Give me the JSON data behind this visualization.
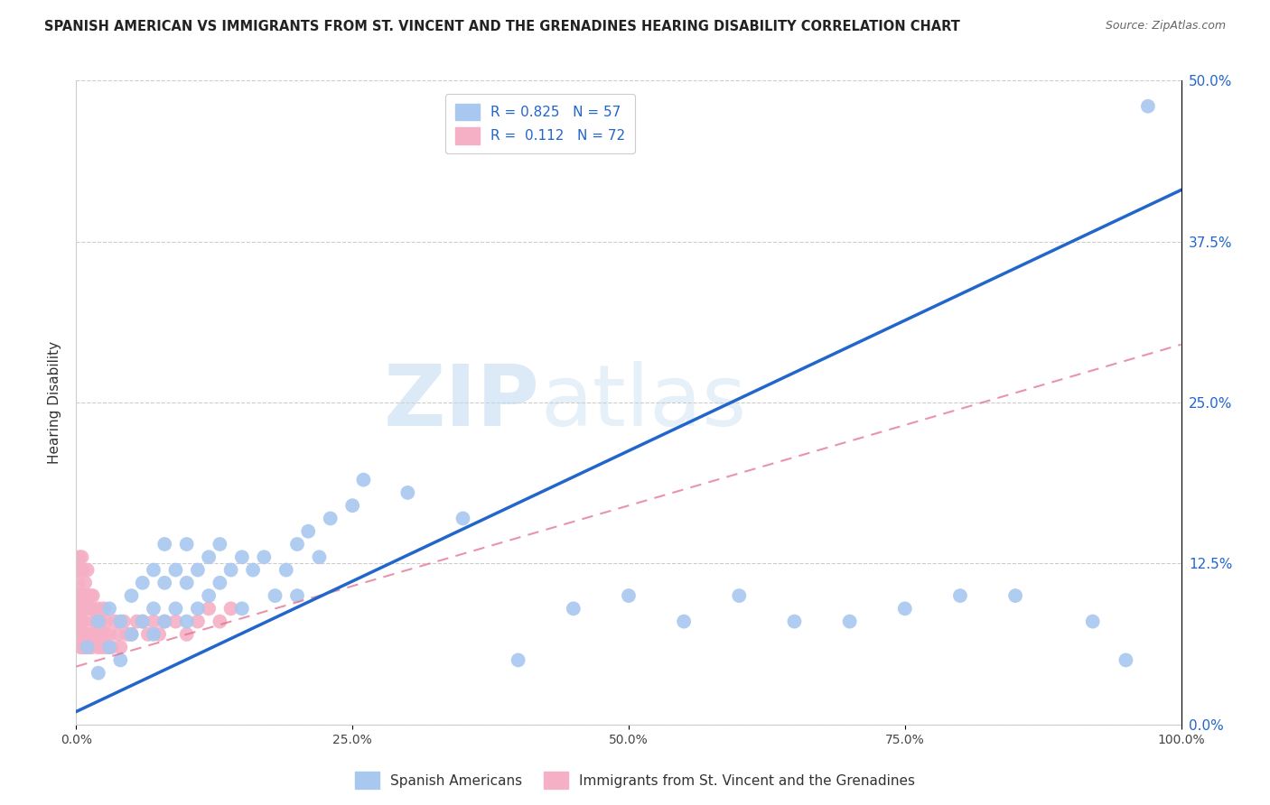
{
  "title": "SPANISH AMERICAN VS IMMIGRANTS FROM ST. VINCENT AND THE GRENADINES HEARING DISABILITY CORRELATION CHART",
  "source": "Source: ZipAtlas.com",
  "ylabel": "Hearing Disability",
  "xlabel": "",
  "R_blue": 0.825,
  "N_blue": 57,
  "R_pink": 0.112,
  "N_pink": 72,
  "blue_color": "#a8c8f0",
  "blue_line_color": "#2266cc",
  "pink_color": "#f5b0c5",
  "pink_line_color": "#e07090",
  "watermark_zip": "ZIP",
  "watermark_atlas": "atlas",
  "xlim": [
    0.0,
    1.0
  ],
  "ylim": [
    0.0,
    0.5
  ],
  "xtick_labels": [
    "0.0%",
    "25.0%",
    "50.0%",
    "75.0%",
    "100.0%"
  ],
  "xtick_vals": [
    0.0,
    0.25,
    0.5,
    0.75,
    1.0
  ],
  "ytick_labels": [
    "0.0%",
    "12.5%",
    "25.0%",
    "37.5%",
    "50.0%"
  ],
  "ytick_vals": [
    0.0,
    0.125,
    0.25,
    0.375,
    0.5
  ],
  "blue_x": [
    0.01,
    0.02,
    0.02,
    0.03,
    0.03,
    0.04,
    0.04,
    0.05,
    0.05,
    0.06,
    0.06,
    0.07,
    0.07,
    0.07,
    0.08,
    0.08,
    0.08,
    0.09,
    0.09,
    0.1,
    0.1,
    0.1,
    0.11,
    0.11,
    0.12,
    0.12,
    0.13,
    0.13,
    0.14,
    0.15,
    0.15,
    0.16,
    0.17,
    0.18,
    0.19,
    0.2,
    0.2,
    0.21,
    0.22,
    0.23,
    0.25,
    0.26,
    0.3,
    0.35,
    0.4,
    0.45,
    0.5,
    0.55,
    0.6,
    0.65,
    0.7,
    0.75,
    0.8,
    0.85,
    0.92,
    0.95,
    0.97
  ],
  "blue_y": [
    0.06,
    0.04,
    0.08,
    0.06,
    0.09,
    0.05,
    0.08,
    0.07,
    0.1,
    0.08,
    0.11,
    0.07,
    0.09,
    0.12,
    0.08,
    0.11,
    0.14,
    0.09,
    0.12,
    0.08,
    0.11,
    0.14,
    0.09,
    0.12,
    0.1,
    0.13,
    0.11,
    0.14,
    0.12,
    0.09,
    0.13,
    0.12,
    0.13,
    0.1,
    0.12,
    0.1,
    0.14,
    0.15,
    0.13,
    0.16,
    0.17,
    0.19,
    0.18,
    0.16,
    0.05,
    0.09,
    0.1,
    0.08,
    0.1,
    0.08,
    0.08,
    0.09,
    0.1,
    0.1,
    0.08,
    0.05,
    0.48
  ],
  "pink_x": [
    0.001,
    0.001,
    0.002,
    0.002,
    0.003,
    0.003,
    0.003,
    0.004,
    0.004,
    0.004,
    0.005,
    0.005,
    0.005,
    0.005,
    0.006,
    0.006,
    0.006,
    0.007,
    0.007,
    0.007,
    0.008,
    0.008,
    0.008,
    0.009,
    0.009,
    0.01,
    0.01,
    0.01,
    0.011,
    0.011,
    0.012,
    0.012,
    0.013,
    0.013,
    0.014,
    0.014,
    0.015,
    0.015,
    0.016,
    0.017,
    0.018,
    0.019,
    0.02,
    0.02,
    0.021,
    0.022,
    0.023,
    0.024,
    0.025,
    0.026,
    0.027,
    0.028,
    0.03,
    0.032,
    0.035,
    0.038,
    0.04,
    0.043,
    0.046,
    0.05,
    0.055,
    0.06,
    0.065,
    0.07,
    0.075,
    0.08,
    0.09,
    0.1,
    0.11,
    0.12,
    0.13,
    0.14
  ],
  "pink_y": [
    0.12,
    0.09,
    0.11,
    0.07,
    0.1,
    0.08,
    0.13,
    0.06,
    0.09,
    0.12,
    0.07,
    0.1,
    0.13,
    0.08,
    0.06,
    0.09,
    0.12,
    0.07,
    0.1,
    0.08,
    0.06,
    0.09,
    0.11,
    0.07,
    0.1,
    0.06,
    0.09,
    0.12,
    0.07,
    0.1,
    0.06,
    0.09,
    0.07,
    0.1,
    0.06,
    0.09,
    0.07,
    0.1,
    0.08,
    0.07,
    0.08,
    0.07,
    0.06,
    0.09,
    0.07,
    0.08,
    0.07,
    0.06,
    0.09,
    0.07,
    0.08,
    0.06,
    0.07,
    0.06,
    0.08,
    0.07,
    0.06,
    0.08,
    0.07,
    0.07,
    0.08,
    0.08,
    0.07,
    0.08,
    0.07,
    0.08,
    0.08,
    0.07,
    0.08,
    0.09,
    0.08,
    0.09
  ],
  "legend_label_blue": "Spanish Americans",
  "legend_label_pink": "Immigrants from St. Vincent and the Grenadines",
  "title_fontsize": 10.5,
  "source_fontsize": 9,
  "axis_label_fontsize": 11,
  "tick_fontsize": 10,
  "legend_fontsize": 11,
  "background_color": "#ffffff",
  "grid_color": "#cccccc",
  "blue_line_start_x": 0.0,
  "blue_line_start_y": 0.01,
  "blue_line_end_x": 1.0,
  "blue_line_end_y": 0.415,
  "pink_line_start_x": 0.0,
  "pink_line_start_y": 0.045,
  "pink_line_end_x": 1.0,
  "pink_line_end_y": 0.295
}
